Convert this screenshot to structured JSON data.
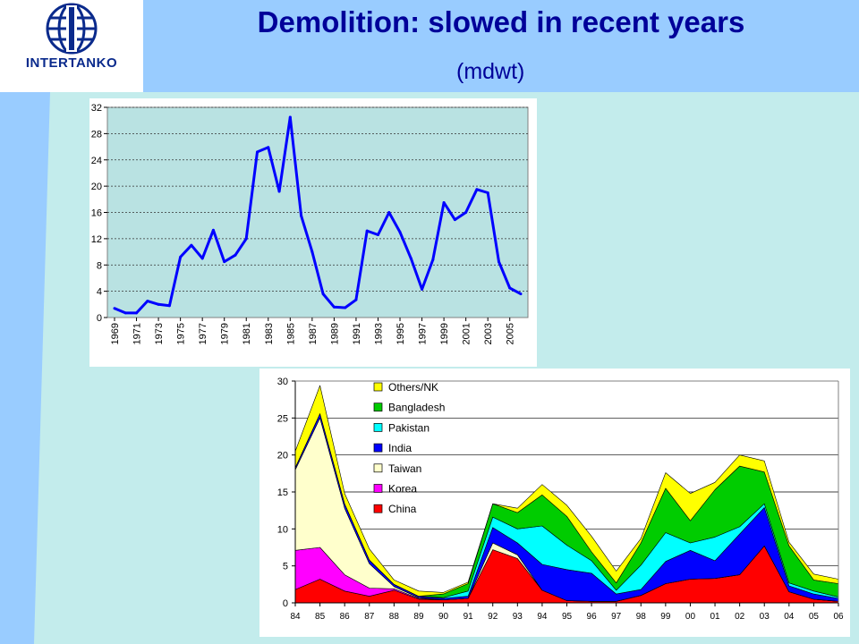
{
  "header": {
    "title": "Demolition: slowed in recent years",
    "subtitle": "(mdwt)",
    "logo_text": "INTERTANKO"
  },
  "colors": {
    "header_band": "#99ccff",
    "background": "#c3ecec",
    "title_text": "#000099",
    "line_series": "#0000ff"
  },
  "chart_data": [
    {
      "type": "line",
      "title": "",
      "x": [
        1969,
        1970,
        1971,
        1972,
        1973,
        1974,
        1975,
        1976,
        1977,
        1978,
        1979,
        1980,
        1981,
        1982,
        1983,
        1984,
        1985,
        1986,
        1987,
        1988,
        1989,
        1990,
        1991,
        1992,
        1993,
        1994,
        1995,
        1996,
        1997,
        1998,
        1999,
        2000,
        2001,
        2002,
        2003,
        2004,
        2005,
        2006
      ],
      "x_tick_labels": [
        "1969",
        "1971",
        "1973",
        "1975",
        "1977",
        "1979",
        "1981",
        "1983",
        "1985",
        "1987",
        "1989",
        "1991",
        "1993",
        "1995",
        "1997",
        "1999",
        "2001",
        "2003",
        "2005"
      ],
      "series": [
        {
          "values": [
            1.4,
            0.7,
            0.7,
            2.5,
            2.0,
            1.8,
            9.2,
            11.0,
            9.0,
            13.3,
            8.5,
            9.5,
            12.0,
            25.2,
            25.9,
            19.2,
            30.5,
            15.5,
            10.0,
            3.6,
            1.6,
            1.5,
            2.7,
            13.2,
            12.6,
            16.0,
            13.0,
            9.0,
            4.3,
            8.8,
            17.5,
            14.9,
            16.0,
            19.5,
            19.0,
            8.5,
            4.5,
            3.6
          ]
        }
      ],
      "ylim": [
        0,
        32
      ],
      "yticks": [
        0,
        4,
        8,
        12,
        16,
        20,
        24,
        28,
        32
      ],
      "grid": true
    },
    {
      "type": "area",
      "stacked": true,
      "categories": [
        "84",
        "85",
        "86",
        "87",
        "88",
        "89",
        "90",
        "91",
        "92",
        "93",
        "94",
        "95",
        "96",
        "97",
        "98",
        "99",
        "00",
        "01",
        "02",
        "03",
        "04",
        "05",
        "06"
      ],
      "series": [
        {
          "name": "China",
          "color": "#ff0000",
          "values": [
            1.8,
            3.2,
            1.6,
            0.9,
            1.7,
            0.5,
            0.4,
            0.6,
            7.2,
            6.0,
            1.7,
            0.3,
            0.2,
            0.2,
            1.0,
            2.6,
            3.2,
            3.3,
            3.8,
            7.7,
            1.5,
            0.5,
            0.2
          ]
        },
        {
          "name": "Korea",
          "color": "#ff00ff",
          "values": [
            5.3,
            4.3,
            2.2,
            1.1,
            0.2,
            0.1,
            0.0,
            0.0,
            0.0,
            0.0,
            0.0,
            0.0,
            0.0,
            0.0,
            0.0,
            0.0,
            0.0,
            0.0,
            0.0,
            0.0,
            0.0,
            0.0,
            0.0
          ]
        },
        {
          "name": "Taiwan",
          "color": "#ffffcc",
          "values": [
            10.9,
            17.5,
            9.0,
            3.3,
            0.3,
            0.1,
            0.0,
            0.0,
            0.9,
            0.5,
            0.0,
            0.0,
            0.0,
            0.0,
            0.0,
            0.0,
            0.0,
            0.0,
            0.0,
            0.0,
            0.0,
            0.0,
            0.0
          ]
        },
        {
          "name": "India",
          "color": "#0000ff",
          "values": [
            0.3,
            0.6,
            0.6,
            0.5,
            0.3,
            0.2,
            0.2,
            0.3,
            2.1,
            1.6,
            3.5,
            4.2,
            3.8,
            1.0,
            0.8,
            3.0,
            3.9,
            2.4,
            5.5,
            5.2,
            0.8,
            0.7,
            0.4
          ]
        },
        {
          "name": "Pakistan",
          "color": "#00ffff",
          "values": [
            0.0,
            0.0,
            0.0,
            0.0,
            0.0,
            0.0,
            0.1,
            0.7,
            1.4,
            1.9,
            5.2,
            3.3,
            1.7,
            0.5,
            3.3,
            3.9,
            1.0,
            3.2,
            1.0,
            0.5,
            0.4,
            0.4,
            0.2
          ]
        },
        {
          "name": "Bangladesh",
          "color": "#00cc00",
          "values": [
            0.0,
            0.0,
            0.0,
            0.0,
            0.0,
            0.0,
            0.5,
            1.0,
            1.8,
            2.2,
            4.2,
            3.9,
            1.2,
            1.0,
            3.0,
            6.0,
            3.0,
            6.4,
            8.2,
            4.3,
            5.0,
            1.5,
            1.8
          ]
        },
        {
          "name": "Others/NK",
          "color": "#ffff00",
          "values": [
            2.2,
            3.8,
            1.4,
            1.5,
            0.6,
            0.7,
            0.2,
            0.2,
            0.0,
            0.6,
            1.4,
            1.5,
            2.1,
            1.6,
            0.6,
            2.1,
            3.7,
            1.0,
            1.5,
            1.5,
            0.5,
            0.8,
            0.6
          ]
        }
      ],
      "ylim": [
        0,
        30
      ],
      "yticks": [
        0,
        5,
        10,
        15,
        20,
        25,
        30
      ],
      "legend": "upper-left",
      "grid": true
    }
  ]
}
